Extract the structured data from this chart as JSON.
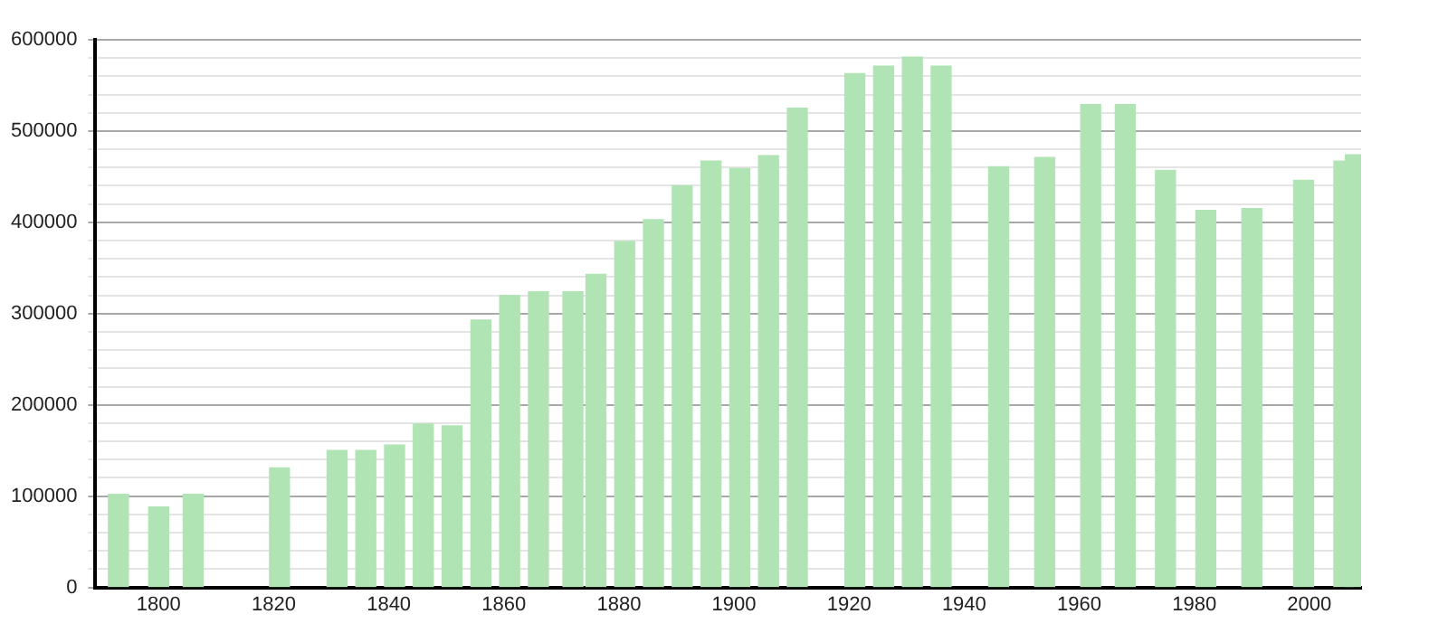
{
  "chart_data": {
    "type": "bar",
    "x": [
      1793,
      1800,
      1806,
      1821,
      1831,
      1836,
      1841,
      1846,
      1851,
      1856,
      1861,
      1866,
      1872,
      1876,
      1881,
      1886,
      1891,
      1896,
      1901,
      1906,
      1911,
      1921,
      1926,
      1931,
      1936,
      1946,
      1954,
      1962,
      1968,
      1975,
      1982,
      1990,
      1999,
      2006,
      2008
    ],
    "values": [
      102000,
      88000,
      102000,
      131000,
      150000,
      150000,
      156000,
      179000,
      177000,
      293000,
      320000,
      324000,
      324000,
      343000,
      379000,
      403000,
      440000,
      467000,
      459000,
      473000,
      525000,
      563000,
      571000,
      581000,
      571000,
      461000,
      471000,
      529000,
      529000,
      457000,
      413000,
      415000,
      446000,
      467000,
      474000
    ],
    "color": "#b0e4b4",
    "xlim": [
      1789,
      2009
    ],
    "xticks": [
      1800,
      1820,
      1840,
      1860,
      1880,
      1900,
      1920,
      1940,
      1960,
      1980,
      2000
    ],
    "ylim": [
      0,
      600000
    ],
    "yticks": [
      0,
      {
        "value": 20000,
        "label": null
      },
      {
        "value": 40000,
        "label": null
      },
      {
        "value": 60000,
        "label": null
      },
      {
        "value": 80000,
        "label": null
      },
      100000,
      {
        "value": 120000,
        "label": null
      },
      {
        "value": 140000,
        "label": null
      },
      {
        "value": 160000,
        "label": null
      },
      {
        "value": 180000,
        "label": null
      },
      200000,
      {
        "value": 220000,
        "label": null
      },
      {
        "value": 240000,
        "label": null
      },
      {
        "value": 260000,
        "label": null
      },
      {
        "value": 280000,
        "label": null
      },
      300000,
      {
        "value": 320000,
        "label": null
      },
      {
        "value": 340000,
        "label": null
      },
      {
        "value": 360000,
        "label": null
      },
      {
        "value": 380000,
        "label": null
      },
      400000,
      {
        "value": 420000,
        "label": null
      },
      {
        "value": 440000,
        "label": null
      },
      {
        "value": 460000,
        "label": null
      },
      {
        "value": 480000,
        "label": null
      },
      500000,
      {
        "value": 520000,
        "label": null
      },
      {
        "value": 540000,
        "label": null
      },
      {
        "value": 560000,
        "label": null
      },
      {
        "value": 580000,
        "label": null
      },
      600000
    ],
    "grid": "y",
    "legend": false
  }
}
